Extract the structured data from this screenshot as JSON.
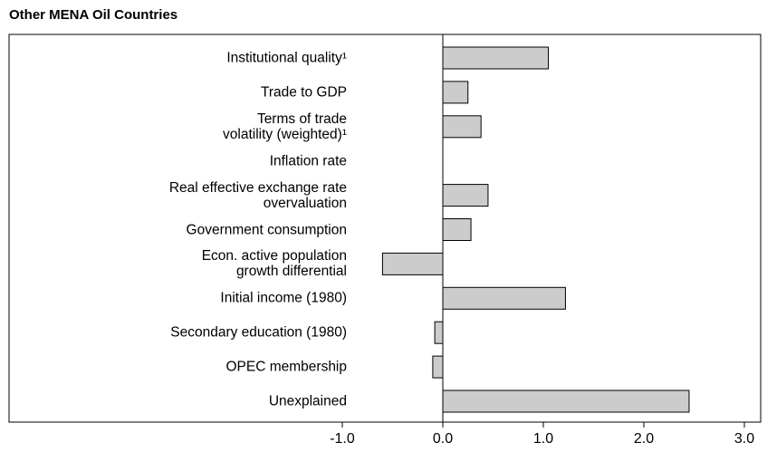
{
  "chart_data": {
    "type": "hbar",
    "title": "Other MENA Oil Countries",
    "categories": [
      "Institutional quality¹",
      "Trade to GDP",
      "Terms of trade\nvolatility (weighted)¹",
      "Inflation rate",
      "Real effective exchange rate\novervaluation",
      "Government consumption",
      "Econ. active population\ngrowth differential",
      "Initial income (1980)",
      "Secondary education (1980)",
      "OPEC membership",
      "Unexplained"
    ],
    "values": [
      1.05,
      0.25,
      0.38,
      0,
      0.45,
      0.28,
      -0.6,
      1.22,
      -0.08,
      -0.1,
      2.45
    ],
    "color": "#cccccc",
    "xlim": [
      -1,
      3
    ],
    "xticks": [
      {
        "value": -1,
        "label": "-1.0"
      },
      {
        "value": 0,
        "label": "0.0"
      },
      {
        "value": 1,
        "label": "1.0"
      },
      {
        "value": 2,
        "label": "2.0"
      },
      {
        "value": 3,
        "label": "3.0"
      }
    ]
  }
}
